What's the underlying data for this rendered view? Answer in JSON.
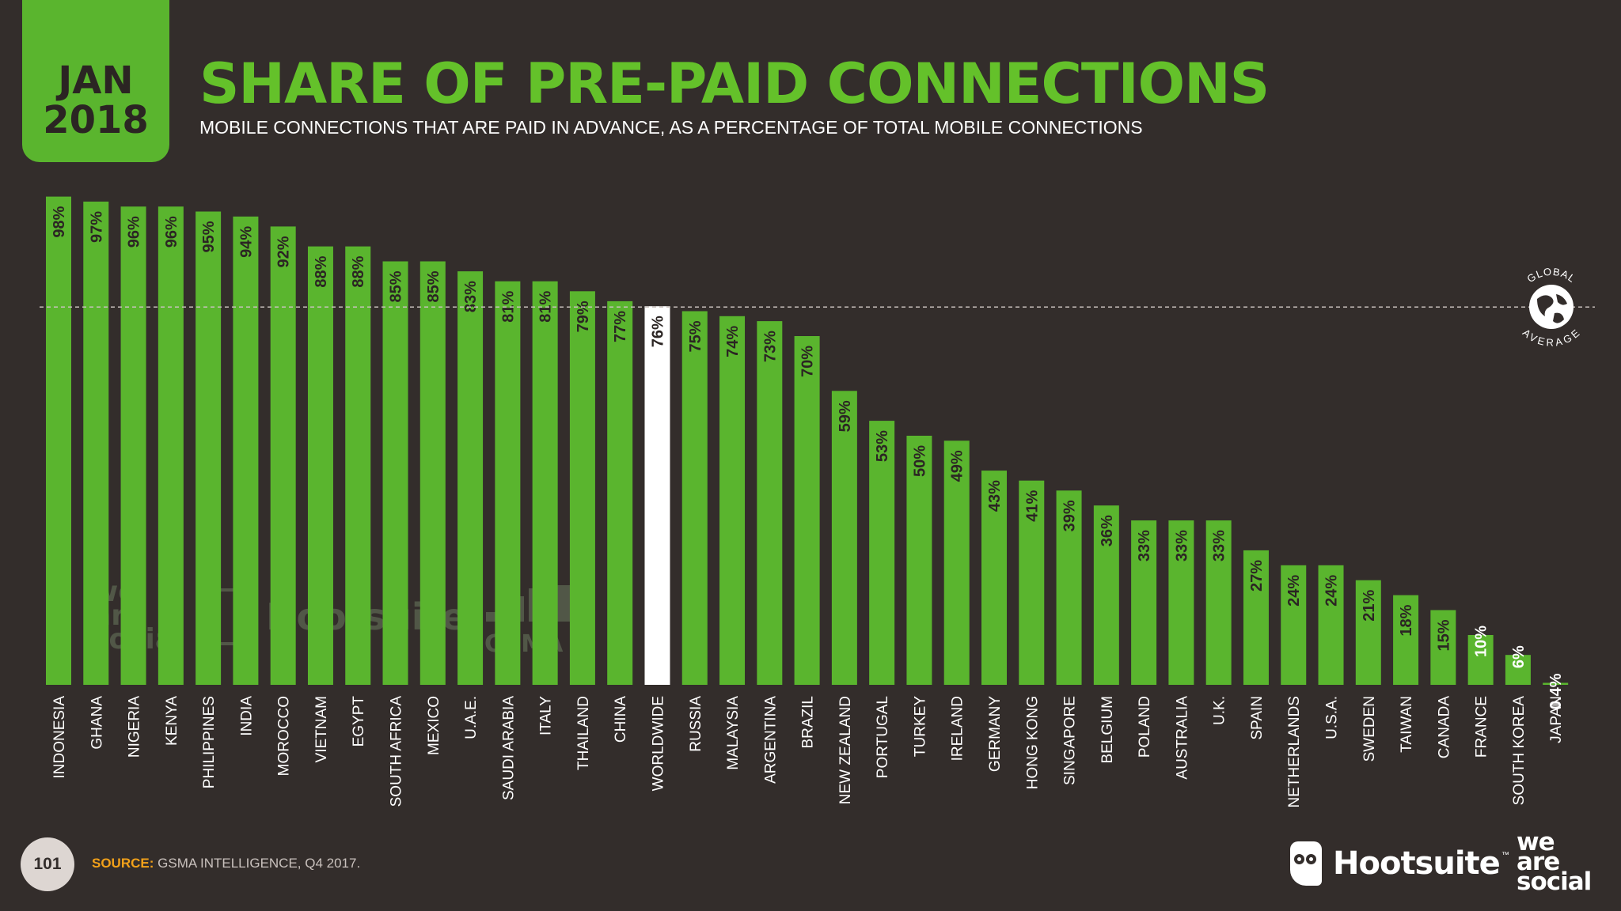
{
  "header": {
    "month": "JAN",
    "year": "2018",
    "title": "SHARE OF PRE-PAID CONNECTIONS",
    "subtitle": "MOBILE CONNECTIONS THAT ARE PAID IN ADVANCE, AS A PERCENTAGE OF TOTAL MOBILE CONNECTIONS"
  },
  "colors": {
    "background": "#332d2b",
    "bar": "#5ab52e",
    "highlight_bar": "#ffffff",
    "title": "#64c12a",
    "label_on_bar": "#2b2523",
    "label_above": "#ffffff",
    "source_label": "#f2a11a"
  },
  "chart_data": {
    "type": "bar",
    "categories": [
      "INDONESIA",
      "GHANA",
      "NIGERIA",
      "KENYA",
      "PHILIPPINES",
      "INDIA",
      "MOROCCO",
      "VIETNAM",
      "EGYPT",
      "SOUTH AFRICA",
      "MEXICO",
      "U.A.E.",
      "SAUDI ARABIA",
      "ITALY",
      "THAILAND",
      "CHINA",
      "WORLDWIDE",
      "RUSSIA",
      "MALAYSIA",
      "ARGENTINA",
      "BRAZIL",
      "NEW ZEALAND",
      "PORTUGAL",
      "TURKEY",
      "IRELAND",
      "GERMANY",
      "HONG KONG",
      "SINGAPORE",
      "BELGIUM",
      "POLAND",
      "AUSTRALIA",
      "U.K.",
      "SPAIN",
      "NETHERLANDS",
      "U.S.A.",
      "SWEDEN",
      "TAIWAN",
      "CANADA",
      "FRANCE",
      "SOUTH KOREA",
      "JAPAN"
    ],
    "values": [
      98,
      97,
      96,
      96,
      95,
      94,
      92,
      88,
      88,
      85,
      85,
      83,
      81,
      81,
      79,
      77,
      76,
      75,
      74,
      73,
      70,
      59,
      53,
      50,
      49,
      43,
      41,
      39,
      36,
      33,
      33,
      33,
      27,
      24,
      24,
      21,
      18,
      15,
      10,
      6,
      0.4
    ],
    "value_labels": [
      "98%",
      "97%",
      "96%",
      "96%",
      "95%",
      "94%",
      "92%",
      "88%",
      "88%",
      "85%",
      "85%",
      "83%",
      "81%",
      "81%",
      "79%",
      "77%",
      "76%",
      "75%",
      "74%",
      "73%",
      "70%",
      "59%",
      "53%",
      "50%",
      "49%",
      "43%",
      "41%",
      "39%",
      "36%",
      "33%",
      "33%",
      "33%",
      "27%",
      "24%",
      "24%",
      "21%",
      "18%",
      "15%",
      "10%",
      "6%",
      "0.4%"
    ],
    "highlight": "WORLDWIDE",
    "reference_line": {
      "value": 76,
      "label": "GLOBAL AVERAGE",
      "style": "dashed"
    },
    "ylim": [
      0,
      100
    ],
    "xlabel": "",
    "ylabel": "",
    "grid": false
  },
  "watermarks": {
    "was": [
      "we",
      "are",
      "social"
    ],
    "hootsuite": "Hootsuite",
    "gsma": "GSMA"
  },
  "footer": {
    "page_number": "101",
    "source_label": "SOURCE:",
    "source_text": "GSMA INTELLIGENCE, Q4 2017.",
    "hootsuite_logo": "Hootsuite",
    "hootsuite_tm": "™",
    "was_logo": [
      "we",
      "are",
      "social"
    ]
  }
}
